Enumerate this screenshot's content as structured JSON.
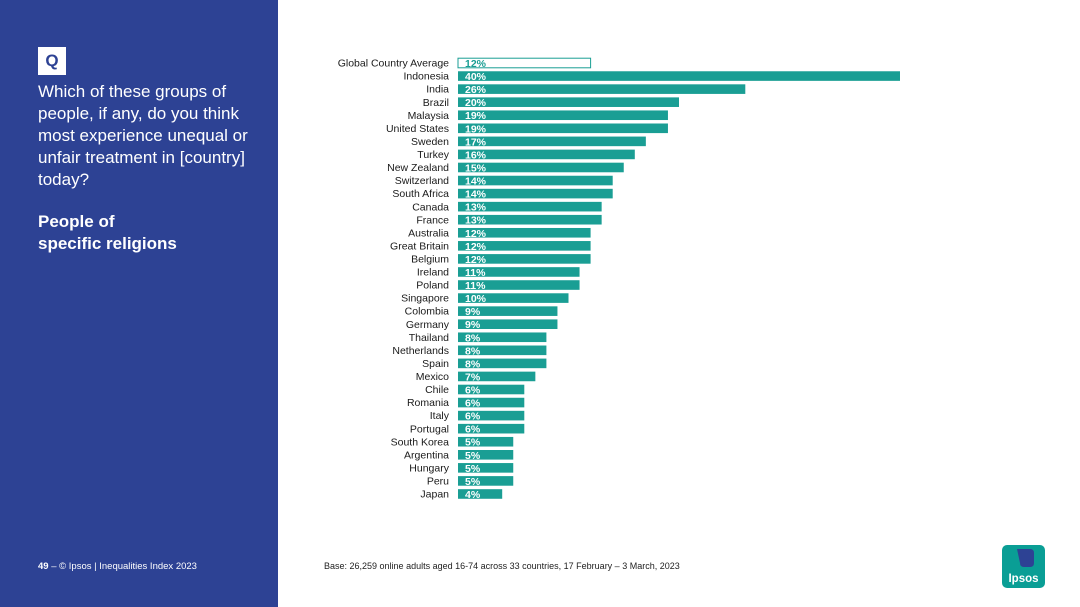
{
  "panel": {
    "badge": "Q",
    "question": "Which of these groups of people, if any, do you think most experience unequal or unfair treatment in [country] today?",
    "subtitle_line1": "People of",
    "subtitle_line2": "specific religions"
  },
  "footer": {
    "page_number": "49",
    "separator": " – ",
    "copyright": "© Ipsos | Inequalities Index 2023",
    "base_note": "Base: 26,259 online adults aged 16-74 across 33 countries, 17 February – 3 March, 2023"
  },
  "logo": {
    "text": "Ipsos"
  },
  "colors": {
    "panel": "#2d4294",
    "bar": "#1a9e94",
    "average_outline": "#1a9e94",
    "logo": "#0a9e95"
  },
  "chart_data": {
    "type": "bar",
    "orientation": "horizontal",
    "categories": [
      "Global Country Average",
      "Indonesia",
      "India",
      "Brazil",
      "Malaysia",
      "United States",
      "Sweden",
      "Turkey",
      "New Zealand",
      "Switzerland",
      "South Africa",
      "Canada",
      "France",
      "Australia",
      "Great Britain",
      "Belgium",
      "Ireland",
      "Poland",
      "Singapore",
      "Colombia",
      "Germany",
      "Thailand",
      "Netherlands",
      "Spain",
      "Mexico",
      "Chile",
      "Romania",
      "Italy",
      "Portugal",
      "South Korea",
      "Argentina",
      "Hungary",
      "Peru",
      "Japan"
    ],
    "values": [
      12,
      40,
      26,
      20,
      19,
      19,
      17,
      16,
      15,
      14,
      14,
      13,
      13,
      12,
      12,
      12,
      11,
      11,
      10,
      9,
      9,
      8,
      8,
      8,
      7,
      6,
      6,
      6,
      6,
      5,
      5,
      5,
      5,
      4
    ],
    "value_labels": [
      "12%",
      "40%",
      "26%",
      "20%",
      "19%",
      "19%",
      "17%",
      "16%",
      "15%",
      "14%",
      "14%",
      "13%",
      "13%",
      "12%",
      "12%",
      "12%",
      "11%",
      "11%",
      "10%",
      "9%",
      "9%",
      "8%",
      "8%",
      "8%",
      "7%",
      "6%",
      "6%",
      "6%",
      "6%",
      "5%",
      "5%",
      "5%",
      "5%",
      "4%"
    ],
    "average_category": "Global Country Average",
    "xlim": [
      0,
      40
    ],
    "grid": false,
    "legend": "none"
  }
}
